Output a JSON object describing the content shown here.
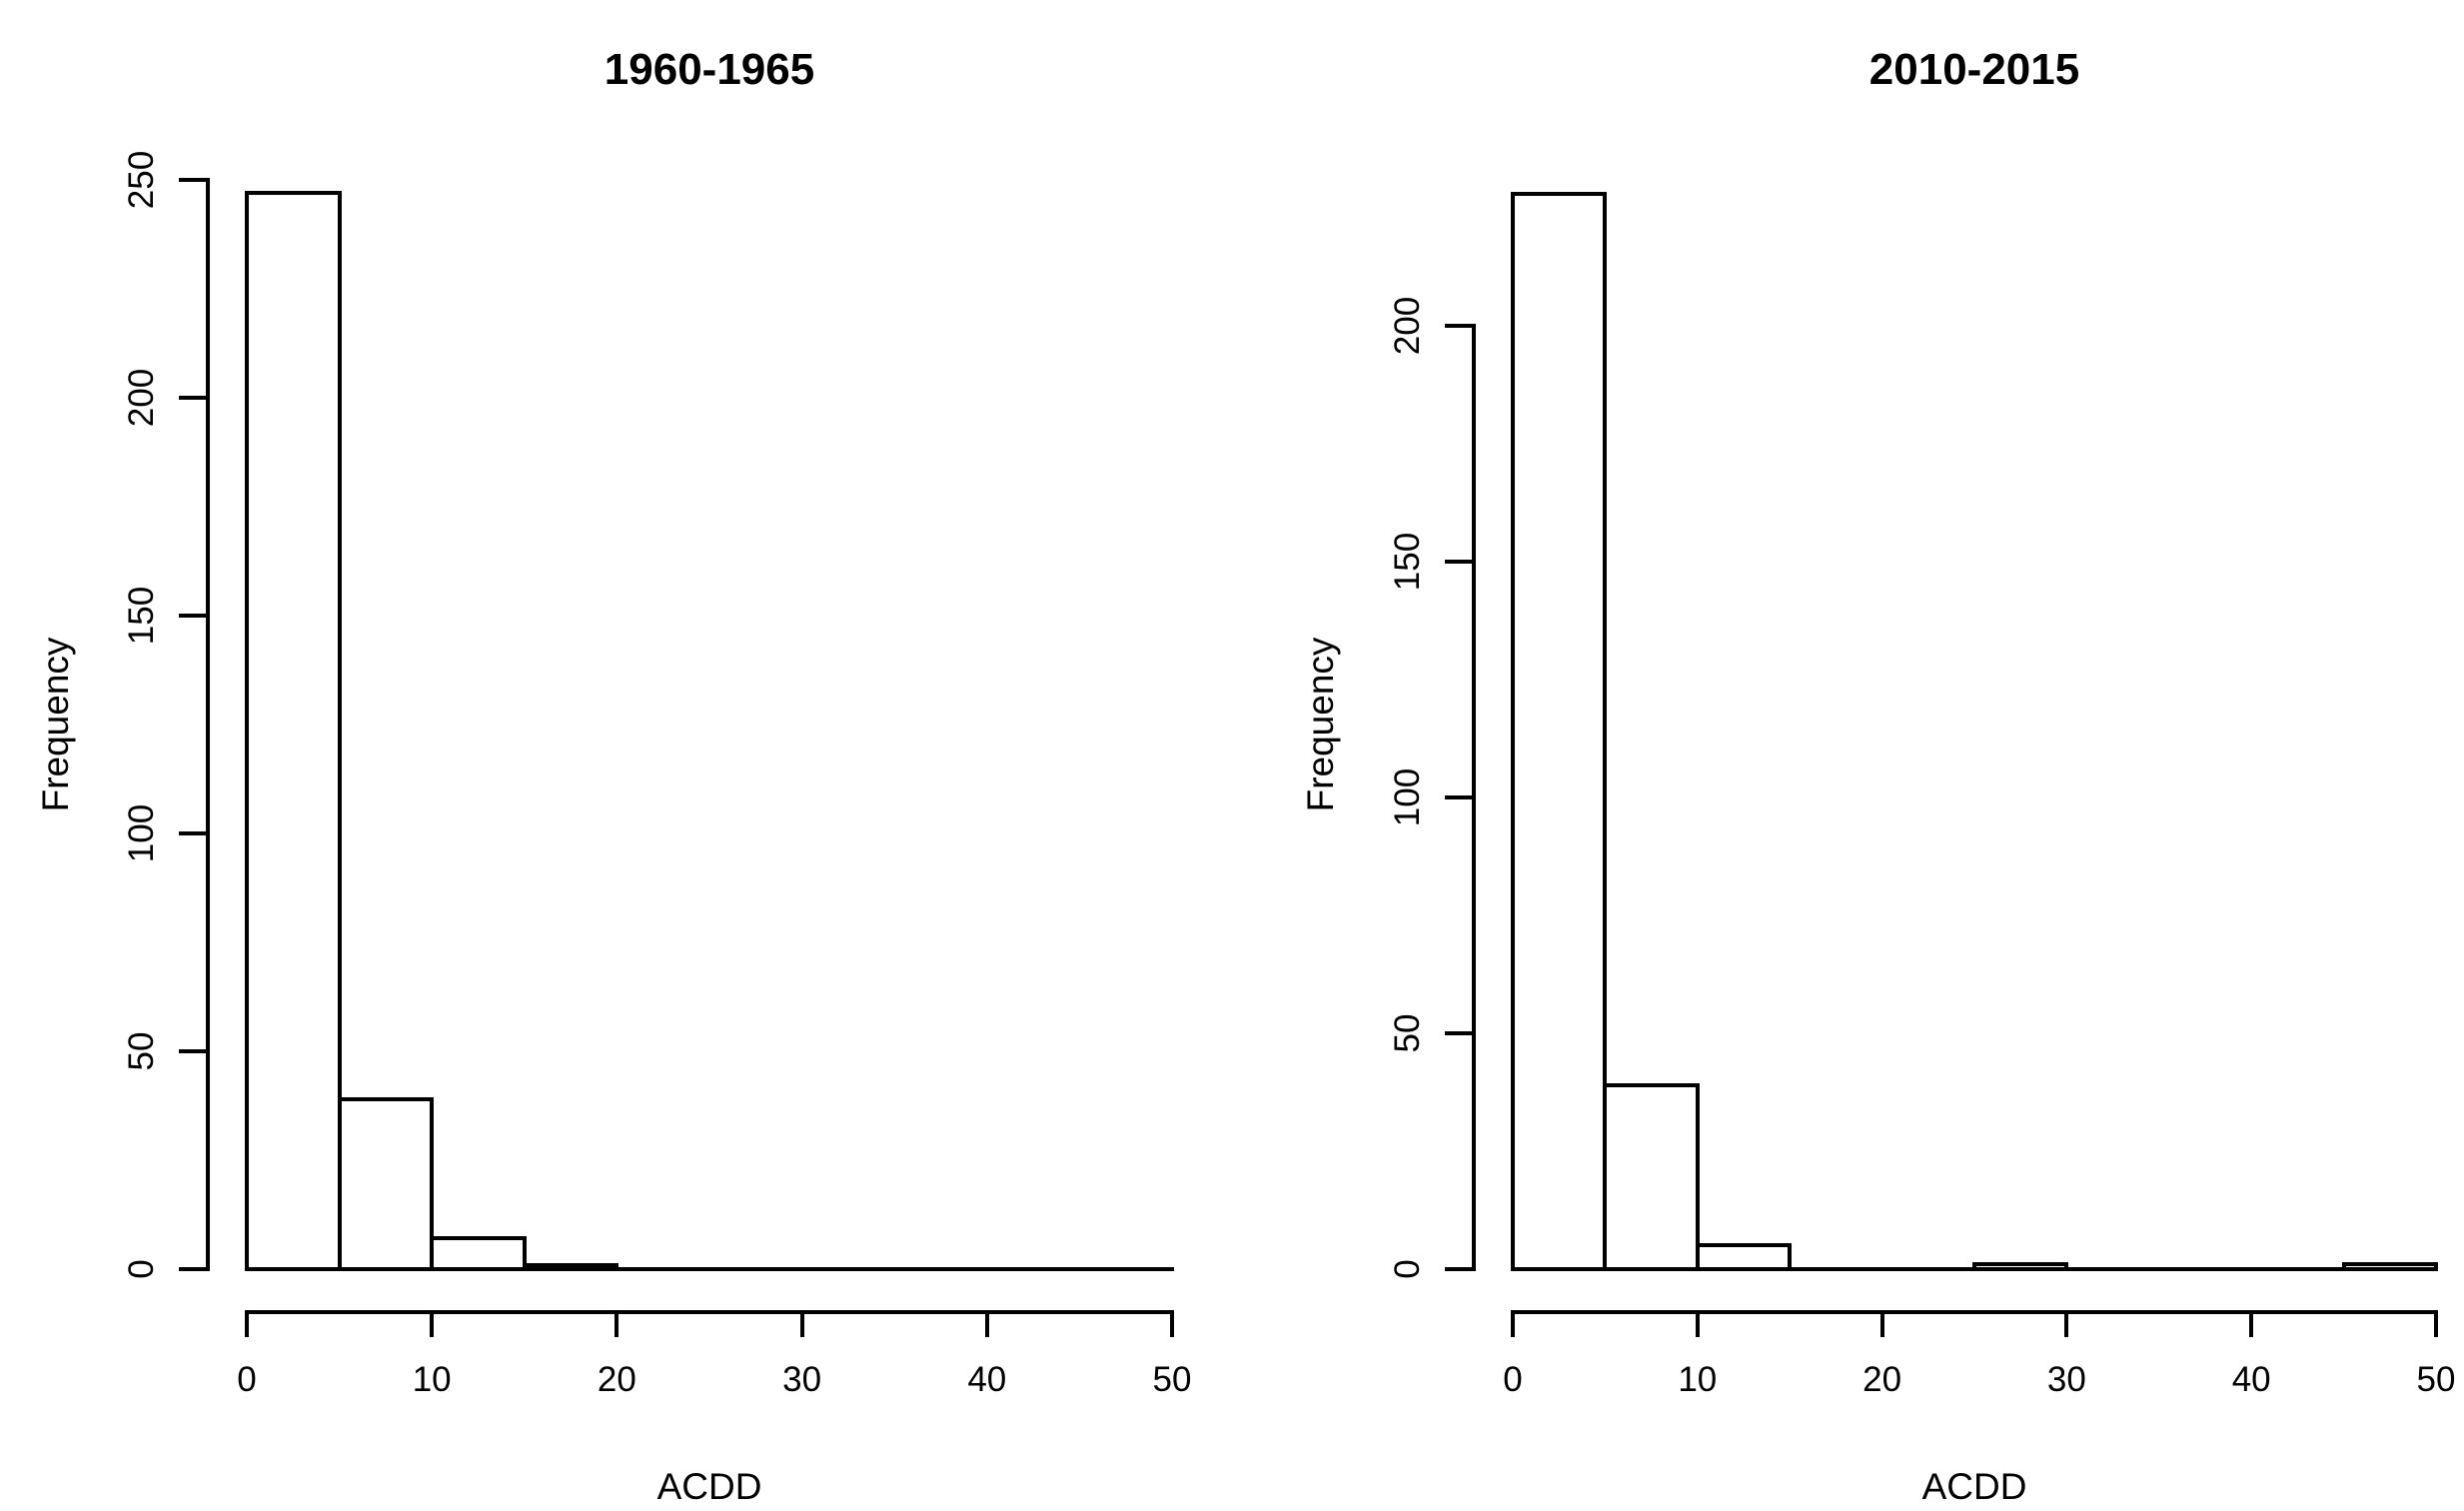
{
  "figure": {
    "background": "#ffffff",
    "line_color": "#000000"
  },
  "chart_data": [
    {
      "type": "bar",
      "subtype": "histogram",
      "title": "1960-1965",
      "xlabel": "ACDD",
      "ylabel": "Frequency",
      "bin_width": 5,
      "bin_edges": [
        0,
        5,
        10,
        15,
        20,
        25,
        30,
        35,
        40,
        45,
        50
      ],
      "categories": [
        "0-5",
        "5-10",
        "10-15",
        "15-20",
        "20-25",
        "25-30",
        "30-35",
        "35-40",
        "40-45",
        "45-50"
      ],
      "values": [
        247,
        39,
        7,
        1,
        0,
        0,
        0,
        0,
        0,
        0
      ],
      "x_ticks": [
        0,
        10,
        20,
        30,
        40,
        50
      ],
      "y_ticks": [
        0,
        50,
        100,
        150,
        200,
        250
      ],
      "xlim": [
        0,
        50
      ],
      "ylim": [
        0,
        250
      ],
      "grid": "off",
      "legend": "none",
      "bar_fill": "#ffffff",
      "bar_border": "#000000"
    },
    {
      "type": "bar",
      "subtype": "histogram",
      "title": "2010-2015",
      "xlabel": "ACDD",
      "ylabel": "Frequency",
      "bin_width": 5,
      "bin_edges": [
        0,
        5,
        10,
        15,
        20,
        25,
        30,
        35,
        40,
        45,
        50
      ],
      "categories": [
        "0-5",
        "5-10",
        "10-15",
        "15-20",
        "20-25",
        "25-30",
        "30-35",
        "35-40",
        "40-45",
        "45-50"
      ],
      "values": [
        228,
        39,
        5,
        0,
        0,
        1,
        0,
        0,
        0,
        1
      ],
      "x_ticks": [
        0,
        10,
        20,
        30,
        40,
        50
      ],
      "y_ticks": [
        0,
        50,
        100,
        150,
        200
      ],
      "xlim": [
        0,
        50
      ],
      "ylim": [
        0,
        228
      ],
      "grid": "off",
      "legend": "none",
      "bar_fill": "#ffffff",
      "bar_border": "#000000"
    }
  ]
}
